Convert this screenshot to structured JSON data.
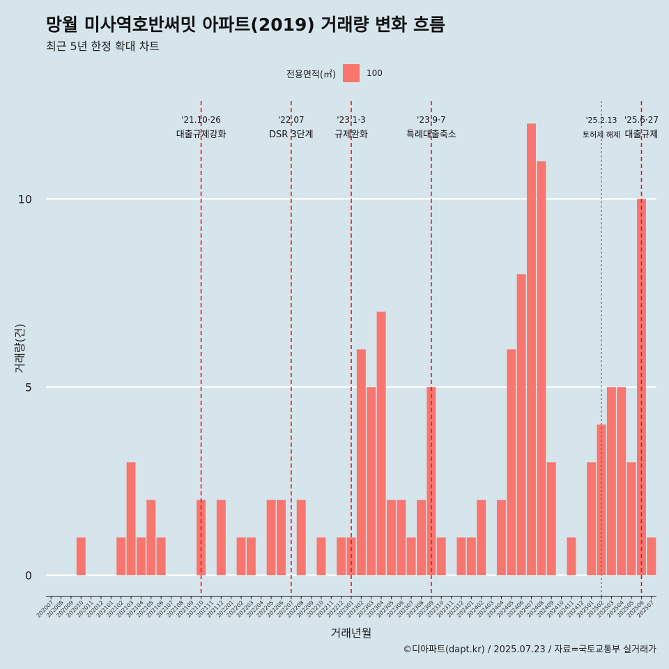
{
  "title": "망월 미사역호반써밋 아파트(2019) 거래량 변화 흐름",
  "subtitle": "최근 5년 한정 확대 차트",
  "caption": "©디아파트(dapt.kr) / 2025.07.23 / 자료=국토교통부 실거래가",
  "legend": {
    "title": "전용면적(㎡)",
    "items": [
      {
        "label": "100",
        "color": "#f8766d"
      }
    ]
  },
  "chart_data": {
    "type": "bar",
    "xlabel": "거래년월",
    "ylabel": "거래량(건)",
    "ylim": [
      -0.55,
      12.6
    ],
    "yticks": [
      0,
      5,
      10
    ],
    "grid": true,
    "legend_position": "top",
    "bar_color": "#f8766d",
    "categories": [
      "202007",
      "202008",
      "202009",
      "202010",
      "202011",
      "202012",
      "202101",
      "202102",
      "202103",
      "202104",
      "202105",
      "202106",
      "202107",
      "202108",
      "202109",
      "202110",
      "202111",
      "202112",
      "202201",
      "202202",
      "202203",
      "202204",
      "202205",
      "202206",
      "202207",
      "202208",
      "202209",
      "202210",
      "202211",
      "202212",
      "202301",
      "202302",
      "202303",
      "202304",
      "202305",
      "202306",
      "202307",
      "202308",
      "202309",
      "202310",
      "202311",
      "202312",
      "202401",
      "202402",
      "202403",
      "202404",
      "202405",
      "202406",
      "202407",
      "202408",
      "202409",
      "202410",
      "202411",
      "202412",
      "202501",
      "202502",
      "202503",
      "202504",
      "202505",
      "202506",
      "202507"
    ],
    "series": [
      {
        "name": "100",
        "values": [
          0,
          0,
          0,
          1,
          0,
          0,
          0,
          1,
          3,
          1,
          2,
          1,
          0,
          0,
          0,
          2,
          0,
          2,
          0,
          1,
          1,
          0,
          2,
          2,
          0,
          2,
          0,
          1,
          0,
          1,
          1,
          6,
          5,
          7,
          2,
          2,
          1,
          2,
          5,
          1,
          0,
          1,
          1,
          2,
          0,
          2,
          6,
          8,
          12,
          11,
          3,
          0,
          1,
          0,
          3,
          4,
          5,
          5,
          3,
          10,
          1
        ]
      }
    ],
    "annotations": [
      {
        "x": "202110",
        "label_top": "'21.10·26",
        "label_bottom": "대출규제강화",
        "dashed": true
      },
      {
        "x": "202207",
        "label_top": "'22.07",
        "label_bottom": "DSR 3단계",
        "dashed": true
      },
      {
        "x": "202301",
        "label_top": "'23.1·3",
        "label_bottom": "규제완화",
        "dashed": true
      },
      {
        "x": "202309",
        "label_top": "'23.9·7",
        "label_bottom": "특례대출축소",
        "dashed": true
      },
      {
        "x": "202502",
        "label_top": "'25.2.13",
        "label_bottom": "토허제 해제",
        "dashed": false
      },
      {
        "x": "202506",
        "label_top": "'25.6·27",
        "label_bottom": "대출규제",
        "dashed": true
      }
    ]
  }
}
